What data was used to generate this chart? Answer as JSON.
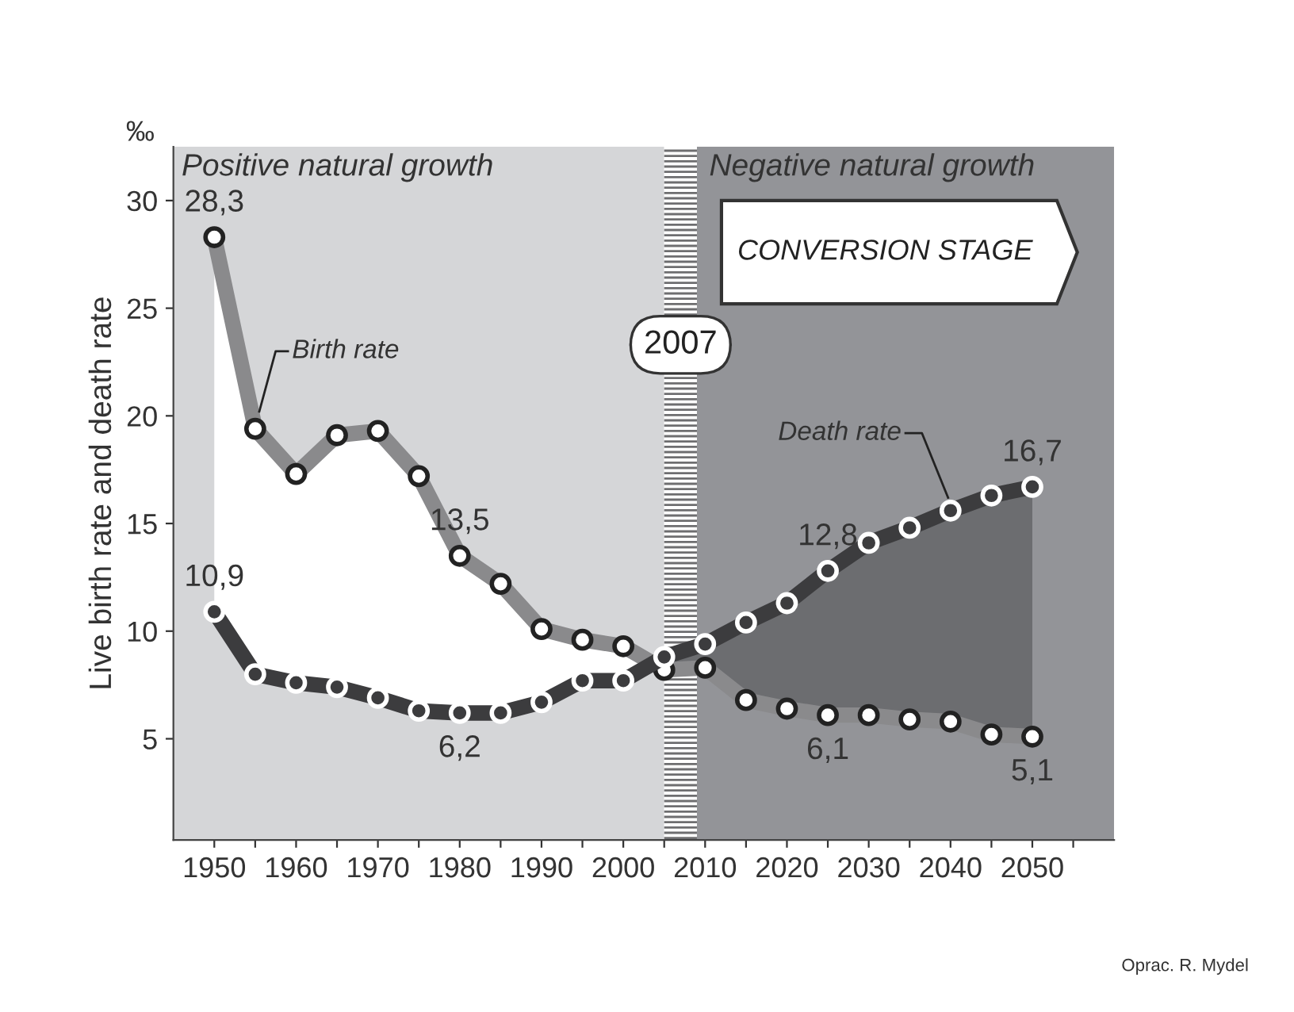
{
  "chart_data": {
    "type": "line",
    "ylabel": "Live birth rate and death rate",
    "x": [
      1950,
      1955,
      1960,
      1965,
      1970,
      1975,
      1980,
      1985,
      1990,
      1995,
      2000,
      2005,
      2010,
      2015,
      2020,
      2025,
      2030,
      2035,
      2040,
      2045,
      2050
    ],
    "series": [
      {
        "name": "Birth rate",
        "color": "#8a8a8c",
        "values": [
          28.3,
          19.4,
          17.3,
          19.1,
          19.3,
          17.2,
          13.5,
          12.2,
          10.1,
          9.6,
          9.3,
          8.2,
          8.3,
          6.8,
          6.4,
          6.1,
          6.1,
          5.9,
          5.8,
          5.2,
          5.1
        ],
        "value_labels": [
          "28,3",
          null,
          null,
          null,
          null,
          null,
          "13,5",
          null,
          null,
          null,
          null,
          null,
          null,
          null,
          null,
          "6,1",
          null,
          null,
          null,
          null,
          "5,1"
        ]
      },
      {
        "name": "Death rate",
        "color": "#3c3c3e",
        "values": [
          10.9,
          8.0,
          7.6,
          7.4,
          6.9,
          6.3,
          6.2,
          6.2,
          6.7,
          7.7,
          7.7,
          8.8,
          9.4,
          10.4,
          11.3,
          12.8,
          14.1,
          14.8,
          15.6,
          16.3,
          16.7
        ],
        "value_labels": [
          "10,9",
          null,
          null,
          null,
          null,
          null,
          "6,2",
          null,
          null,
          null,
          null,
          null,
          null,
          null,
          null,
          "12,8",
          null,
          null,
          null,
          null,
          "16,7"
        ]
      }
    ],
    "xlim": [
      1945,
      2060
    ],
    "ylim": [
      0.3,
      32.5
    ],
    "xticks": [
      1950,
      {
        "value": 1955,
        "label": null
      },
      1960,
      {
        "value": 1965,
        "label": null
      },
      1970,
      {
        "value": 1975,
        "label": null
      },
      1980,
      {
        "value": 1985,
        "label": null
      },
      1990,
      {
        "value": 1995,
        "label": null
      },
      2000,
      {
        "value": 2005,
        "label": null
      },
      2010,
      {
        "value": 2015,
        "label": null
      },
      2020,
      {
        "value": 2025,
        "label": null
      },
      2030,
      {
        "value": 2035,
        "label": null
      },
      2040,
      {
        "value": 2045,
        "label": null
      },
      2050,
      {
        "value": 2055,
        "label": null
      }
    ],
    "yticks": [
      5,
      10,
      15,
      20,
      25,
      30
    ],
    "bands": [
      {
        "axis": "x",
        "from": 1945,
        "to": 2005,
        "label": "Positive natural growth",
        "color": "#d5d6d8"
      },
      {
        "axis": "x",
        "from": 2005,
        "to": 2009,
        "label": "2007",
        "color": "#6e6e70"
      },
      {
        "axis": "x",
        "from": 2009,
        "to": 2060,
        "label": "Negative natural growth",
        "color": "#939498"
      }
    ],
    "annotations": [
      "‰",
      "CONVERSION STAGE",
      "Oprac. R. Mydel"
    ],
    "marker": "circle",
    "line_style": "solid",
    "grid": false,
    "legend": false
  }
}
